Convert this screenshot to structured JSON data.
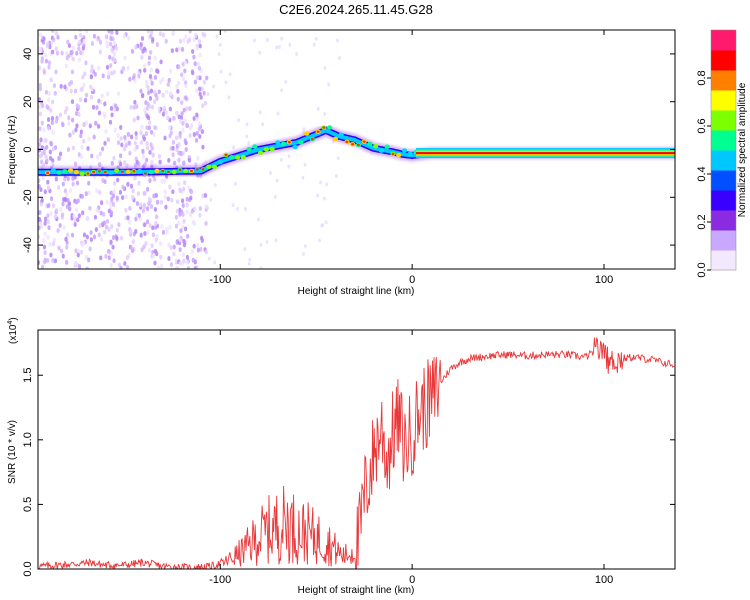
{
  "title": "C2E6.2024.265.11.45.G28",
  "colorbar": {
    "label": "Normalized spectral amplitude",
    "ticks": [
      "0.0",
      "0.2",
      "0.4",
      "0.6",
      "0.8"
    ],
    "tick_values": [
      0.0,
      0.2,
      0.4,
      0.6,
      0.8
    ],
    "range": [
      0,
      1
    ],
    "colors": [
      "#f3e9ff",
      "#c9a8ff",
      "#8a2be2",
      "#3a00ff",
      "#0050ff",
      "#00c8ff",
      "#00ff90",
      "#7cff00",
      "#ffff00",
      "#ff8000",
      "#ff0000",
      "#ff1a6e"
    ]
  },
  "chart_data": [
    {
      "type": "heatmap",
      "xlabel": "Height of straight line (km)",
      "ylabel": "Frequency (Hz)",
      "xlim": [
        -195,
        137
      ],
      "ylim": [
        -50,
        50
      ],
      "xticks": [
        -100,
        0,
        100
      ],
      "yticks": [
        -40,
        -20,
        0,
        20,
        40
      ],
      "ridge": {
        "x": [
          -195,
          -150,
          -110,
          -100,
          -80,
          -60,
          -45,
          -38,
          -30,
          -20,
          -10,
          -5,
          0,
          10,
          50,
          100,
          137
        ],
        "y": [
          -9.5,
          -9.5,
          -9.0,
          -5.0,
          0.0,
          3.0,
          8.0,
          5.5,
          4.0,
          0.5,
          -1.0,
          -2.0,
          -2.5,
          -1.5,
          -1.5,
          -1.5,
          -1.5
        ]
      }
    },
    {
      "type": "line",
      "xlabel": "Height of straight line (km)",
      "ylabel": "SNR (10 * v/v)",
      "y_scale_label": "(x10",
      "y_scale_exp": "4",
      "xlim": [
        -195,
        137
      ],
      "ylim": [
        0,
        1.85
      ],
      "xticks": [
        -100,
        0,
        100
      ],
      "yticks": [
        0.0,
        0.5,
        1.0,
        1.5
      ],
      "ytick_labels": [
        "0.0",
        "0.5",
        "1.0",
        "1.5"
      ],
      "color": "#e8383a",
      "series": [
        {
          "x": [
            -195,
            -185,
            -175,
            -168,
            -160,
            -150,
            -140,
            -130,
            -115,
            -105,
            -98,
            -90,
            -85,
            -80,
            -75,
            -70,
            -65,
            -60,
            -55,
            -50,
            -45,
            -40,
            -36,
            -32,
            -28,
            -25,
            -22,
            -19,
            -16,
            -13,
            -10,
            -7,
            -4,
            0,
            3,
            6,
            10,
            15,
            20,
            25,
            30,
            40,
            50,
            60,
            70,
            80,
            90,
            95,
            100,
            103,
            106,
            110,
            115,
            120,
            125,
            130,
            137
          ],
          "y": [
            0.02,
            0.03,
            0.04,
            0.05,
            0.03,
            0.03,
            0.05,
            0.02,
            0.01,
            0.02,
            0.05,
            0.12,
            0.18,
            0.25,
            0.3,
            0.33,
            0.36,
            0.3,
            0.28,
            0.24,
            0.22,
            0.15,
            0.1,
            0.12,
            0.2,
            0.55,
            0.75,
            0.95,
            1.1,
            0.85,
            1.05,
            1.15,
            0.95,
            1.05,
            1.2,
            1.25,
            1.3,
            1.45,
            1.55,
            1.6,
            1.63,
            1.65,
            1.66,
            1.65,
            1.66,
            1.66,
            1.64,
            1.68,
            1.7,
            1.6,
            1.62,
            1.63,
            1.64,
            1.63,
            1.62,
            1.6,
            1.58
          ]
        }
      ]
    }
  ]
}
